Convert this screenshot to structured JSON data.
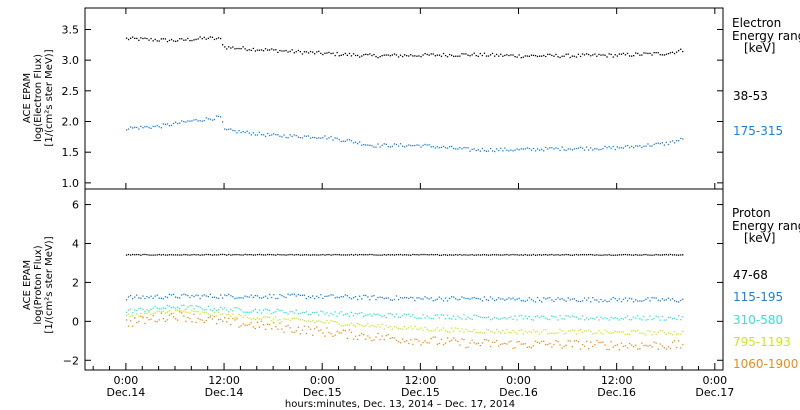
{
  "colors": {
    "background": "#ffffff",
    "axis": "#000000",
    "black": "#000000",
    "blue": "#1e7fd8",
    "cyan": "#2ee6d0",
    "yellow": "#c8ec1a",
    "orange": "#f08a1c"
  },
  "chart_data": [
    {
      "type": "scatter",
      "ylabel_lines": [
        "ACE EPAM",
        "log(Electron Flux)",
        "[1/(cm²s ster MeV)]"
      ],
      "ylim": [
        0.9,
        3.85
      ],
      "yticks": [
        1.0,
        1.5,
        2.0,
        2.5,
        3.0,
        3.5
      ],
      "ytick_labels": [
        "1.0",
        "1.5",
        "2.0",
        "2.5",
        "3.0",
        "3.5"
      ],
      "legend_title_lines": [
        "Electron",
        "Energy ranges",
        "[keV]"
      ],
      "series": [
        {
          "name": "38-53",
          "color": "black",
          "hours": [
            0,
            6,
            10,
            11.5,
            12,
            18,
            24,
            30,
            36,
            42,
            48,
            54,
            60,
            66,
            68
          ],
          "values": [
            3.36,
            3.33,
            3.37,
            3.35,
            3.22,
            3.17,
            3.12,
            3.08,
            3.09,
            3.1,
            3.08,
            3.08,
            3.09,
            3.12,
            3.17
          ]
        },
        {
          "name": "175-315",
          "color": "blue",
          "hours": [
            0,
            4,
            8,
            11.5,
            12,
            18,
            24,
            27,
            30,
            36,
            42,
            48,
            54,
            60,
            66,
            68
          ],
          "values": [
            1.9,
            1.93,
            2.02,
            2.08,
            1.87,
            1.78,
            1.76,
            1.7,
            1.62,
            1.62,
            1.55,
            1.55,
            1.57,
            1.58,
            1.65,
            1.72
          ]
        }
      ]
    },
    {
      "type": "scatter",
      "ylabel_lines": [
        "ACE EPAM",
        "log(Proton Flux)",
        "[1/(cm²s ster MeV)]"
      ],
      "ylim": [
        -2.5,
        6.8
      ],
      "yticks": [
        -2,
        0,
        2,
        4,
        6
      ],
      "ytick_labels": [
        "−2",
        "0",
        "2",
        "4",
        "6"
      ],
      "legend_title_lines": [
        "Proton",
        "Energy ranges",
        "[keV]"
      ],
      "series": [
        {
          "name": "47-68",
          "color": "black",
          "hours": [
            0,
            12,
            24,
            36,
            48,
            60,
            68
          ],
          "values": [
            3.45,
            3.45,
            3.45,
            3.45,
            3.45,
            3.45,
            3.45
          ]
        },
        {
          "name": "115-195",
          "color": "blue",
          "hours": [
            0,
            6,
            12,
            18,
            24,
            30,
            36,
            42,
            48,
            54,
            60,
            68
          ],
          "values": [
            1.25,
            1.32,
            1.32,
            1.32,
            1.3,
            1.25,
            1.2,
            1.2,
            1.15,
            1.15,
            1.15,
            1.12
          ]
        },
        {
          "name": "310-580",
          "color": "cyan",
          "hours": [
            0,
            6,
            12,
            18,
            24,
            30,
            36,
            42,
            48,
            54,
            60,
            68
          ],
          "values": [
            0.55,
            0.78,
            0.65,
            0.55,
            0.45,
            0.35,
            0.3,
            0.25,
            0.22,
            0.2,
            0.2,
            0.2
          ]
        },
        {
          "name": "795-1193",
          "color": "yellow",
          "hours": [
            0,
            6,
            12,
            18,
            24,
            30,
            36,
            42,
            48,
            54,
            60,
            68
          ],
          "values": [
            0.3,
            0.55,
            0.35,
            0.15,
            0.0,
            -0.2,
            -0.35,
            -0.45,
            -0.5,
            -0.5,
            -0.55,
            -0.55
          ]
        },
        {
          "name": "1060-1900",
          "color": "orange",
          "hours": [
            0,
            6,
            12,
            18,
            24,
            30,
            36,
            42,
            48,
            54,
            60,
            68
          ],
          "values": [
            -0.05,
            0.35,
            0.0,
            -0.25,
            -0.5,
            -0.75,
            -0.95,
            -1.1,
            -1.15,
            -1.15,
            -1.2,
            -1.2
          ]
        }
      ]
    }
  ],
  "x_axis": {
    "hours_range": [
      -5,
      73
    ],
    "ticks": [
      {
        "hour": 0,
        "time": "0:00",
        "date": "Dec.14"
      },
      {
        "hour": 12,
        "time": "12:00",
        "date": "Dec.14"
      },
      {
        "hour": 24,
        "time": "0:00",
        "date": "Dec.15"
      },
      {
        "hour": 36,
        "time": "12:00",
        "date": "Dec.15"
      },
      {
        "hour": 48,
        "time": "0:00",
        "date": "Dec.16"
      },
      {
        "hour": 60,
        "time": "12:00",
        "date": "Dec.16"
      },
      {
        "hour": 72,
        "time": "0:00",
        "date": "Dec.17"
      }
    ],
    "label": "hours:minutes, Dec. 13, 2014 – Dec. 17, 2014"
  }
}
